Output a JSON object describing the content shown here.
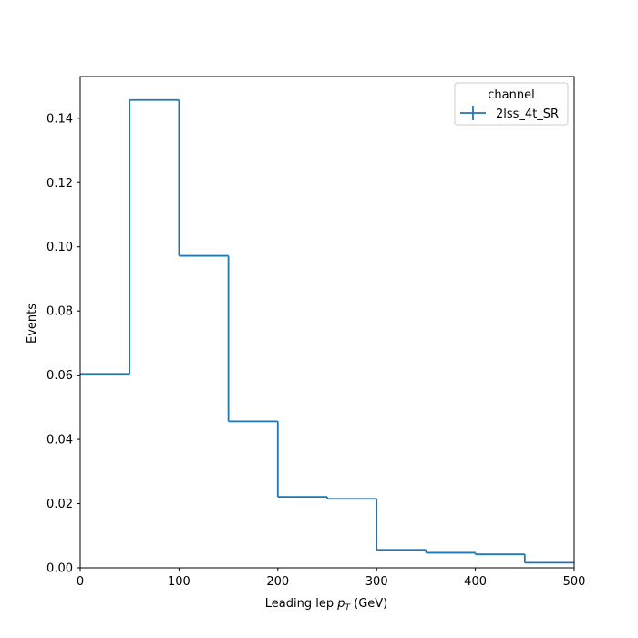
{
  "chart_data": {
    "type": "histogram-step",
    "xlabel_main": "Leading lep ",
    "xlabel_var": "p",
    "xlabel_sub": "T",
    "xlabel_unit": " (GeV)",
    "ylabel": "Events",
    "xlim": [
      0,
      500
    ],
    "ylim": [
      0,
      0.153
    ],
    "x_ticks": [
      0,
      100,
      200,
      300,
      400,
      500
    ],
    "x_tick_labels": [
      "0",
      "100",
      "200",
      "300",
      "400",
      "500"
    ],
    "y_ticks": [
      0,
      0.02,
      0.04,
      0.06,
      0.08,
      0.1,
      0.12,
      0.14
    ],
    "y_tick_labels": [
      "0.00",
      "0.02",
      "0.04",
      "0.06",
      "0.08",
      "0.10",
      "0.12",
      "0.14"
    ],
    "bin_edges": [
      0,
      50,
      100,
      150,
      200,
      250,
      300,
      350,
      400,
      450,
      500
    ],
    "series": [
      {
        "name": "2lss_4t_SR",
        "color": "#1f77b4",
        "values": [
          0.0604,
          0.1457,
          0.0972,
          0.0456,
          0.0221,
          0.0215,
          0.0056,
          0.0047,
          0.0042,
          0.0016
        ]
      }
    ],
    "legend": {
      "title": "channel",
      "position": "top-right"
    },
    "grid": false
  }
}
